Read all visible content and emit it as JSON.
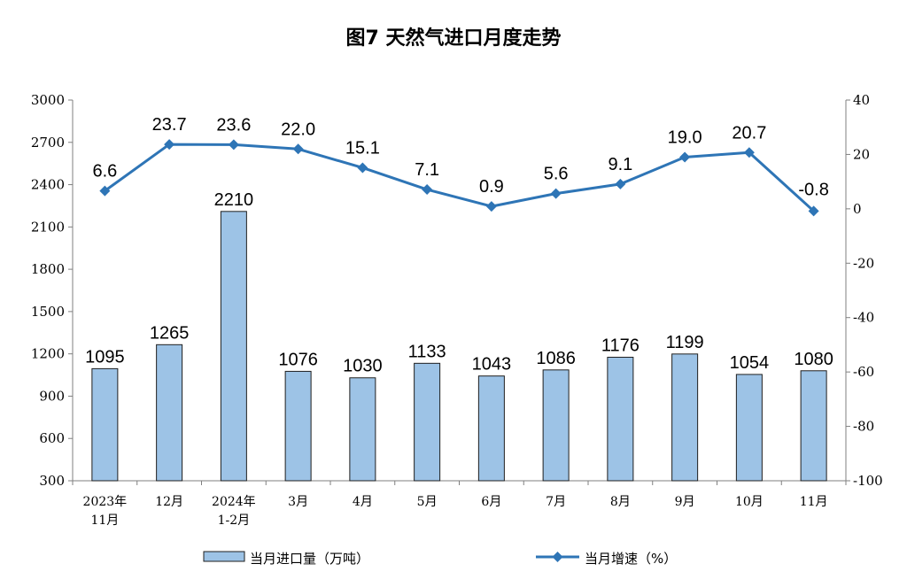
{
  "chart_data": {
    "type": "bar",
    "title": "图7  天然气进口月度走势",
    "categories": [
      [
        "2023年",
        "11月"
      ],
      [
        "12月"
      ],
      [
        "2024年",
        "1-2月"
      ],
      [
        "3月"
      ],
      [
        "4月"
      ],
      [
        "5月"
      ],
      [
        "6月"
      ],
      [
        "7月"
      ],
      [
        "8月"
      ],
      [
        "9月"
      ],
      [
        "10月"
      ],
      [
        "11月"
      ]
    ],
    "series": [
      {
        "name": "当月进口量（万吨）",
        "type": "bar",
        "axis": "left",
        "values": [
          1095,
          1265,
          2210,
          1076,
          1030,
          1133,
          1043,
          1086,
          1176,
          1199,
          1054,
          1080
        ],
        "labels": [
          "1095",
          "1265",
          "2210",
          "1076",
          "1030",
          "1133",
          "1043",
          "1086",
          "1176",
          "1199",
          "1054",
          "1080"
        ]
      },
      {
        "name": "当月增速（%）",
        "type": "line",
        "axis": "right",
        "values": [
          6.6,
          23.7,
          23.6,
          22.0,
          15.1,
          7.1,
          0.9,
          5.6,
          9.1,
          19.0,
          20.7,
          -0.8
        ],
        "labels": [
          "6.6",
          "23.7",
          "23.6",
          "22.0",
          "15.1",
          "7.1",
          "0.9",
          "5.6",
          "9.1",
          "19.0",
          "20.7",
          "-0.8"
        ]
      }
    ],
    "y_left": {
      "range": [
        300,
        3000
      ],
      "ticks": [
        300,
        600,
        900,
        1200,
        1500,
        1800,
        2100,
        2400,
        2700,
        3000
      ]
    },
    "y_right": {
      "range": [
        -100,
        40
      ],
      "ticks": [
        -100,
        -80,
        -60,
        -40,
        -20,
        0,
        20,
        40
      ]
    },
    "grid": false,
    "legend": "bottom",
    "colors": {
      "bar_fill": "#9dc3e6",
      "bar_stroke": "#1f1f1f",
      "line": "#2e75b6",
      "axis": "#7f7f7f"
    }
  }
}
